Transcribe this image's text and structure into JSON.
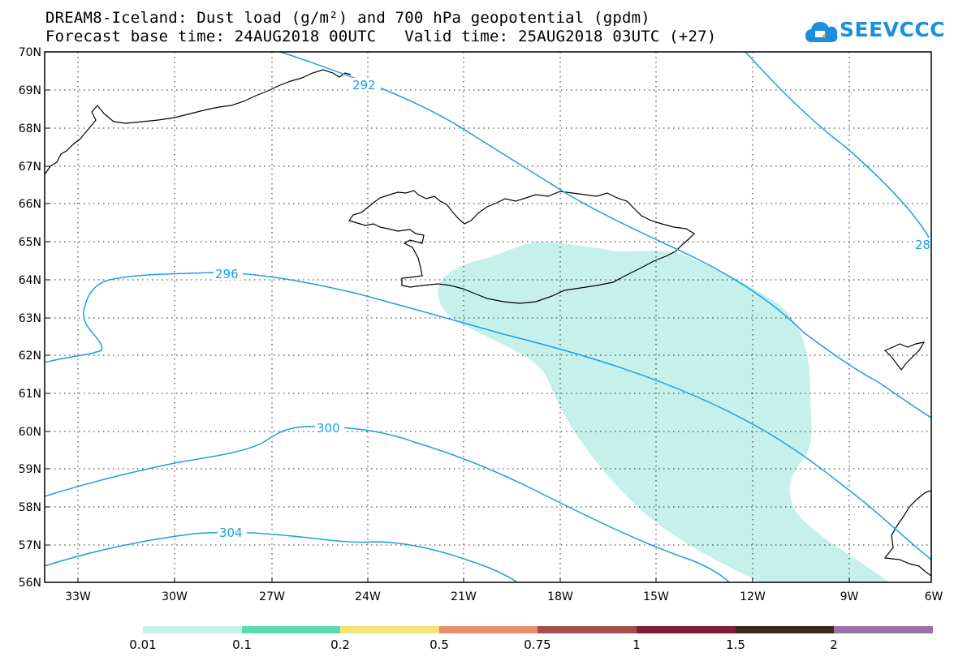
{
  "title": {
    "line1": "DREAM8-Iceland: Dust load (g/m²) and 700 hPa geopotential (gpdm)",
    "line2": "Forecast base time: 24AUG2018 00UTC   Valid time: 25AUG2018 03UTC (+27)"
  },
  "logo": {
    "text": "SEEVCCC",
    "icon": "cloud-icon",
    "color": "#1a8fe0"
  },
  "map": {
    "lat_labels": [
      "70N",
      "69N",
      "68N",
      "67N",
      "66N",
      "65N",
      "64N",
      "63N",
      "62N",
      "61N",
      "60N",
      "59N",
      "58N",
      "57N",
      "56N"
    ],
    "lon_labels": [
      "33W",
      "30W",
      "27W",
      "24W",
      "21W",
      "18W",
      "15W",
      "12W",
      "9W",
      "6W"
    ],
    "contour_labels": [
      "292",
      "296",
      "300",
      "304",
      "28"
    ],
    "contour_color": "#1a9fe8",
    "dust_fill_color": "#c6f0ea",
    "gridlines": "dotted"
  },
  "colorbar": {
    "labels": [
      "0.01",
      "0.1",
      "0.2",
      "0.5",
      "0.75",
      "1",
      "1.5",
      "2"
    ],
    "colors": [
      "#c6f0ea",
      "#5ddbb0",
      "#f4e37a",
      "#e6906a",
      "#a5504a",
      "#7d1f36",
      "#3b2a17",
      "#9a72a8"
    ]
  }
}
